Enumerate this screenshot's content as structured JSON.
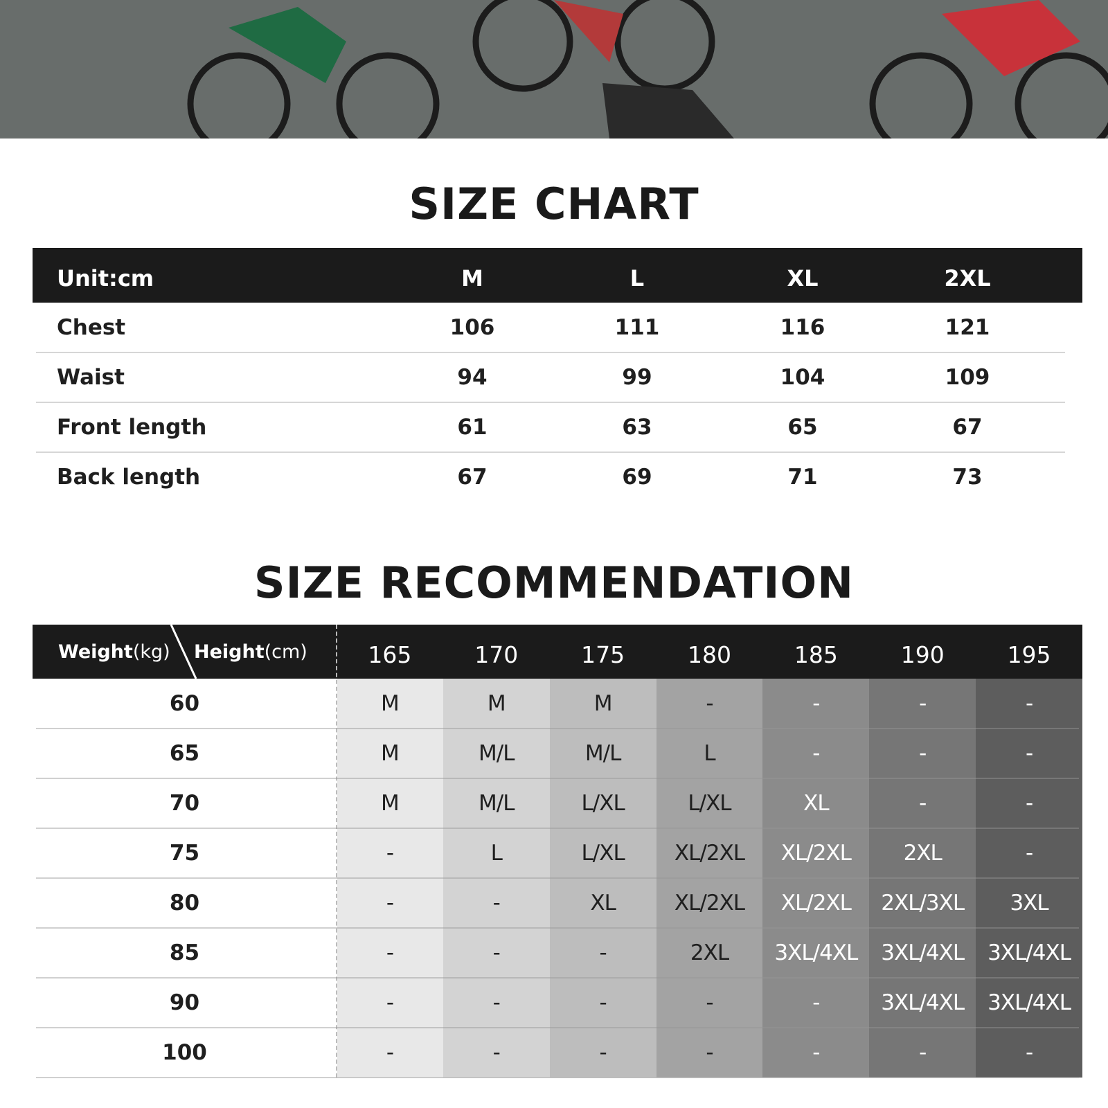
{
  "size_chart": {
    "title": "SIZE CHART",
    "header": [
      "Unit:cm",
      "M",
      "L",
      "XL",
      "2XL"
    ],
    "rows": [
      [
        "Chest",
        106,
        111,
        116,
        121
      ],
      [
        "Waist",
        94,
        99,
        104,
        109
      ],
      [
        "Front length",
        61,
        63,
        65,
        67
      ],
      [
        "Back length",
        67,
        69,
        71,
        73
      ]
    ]
  },
  "size_recommendation": {
    "title": "SIZE RECOMMENDATION",
    "weight_label": "Weight",
    "weight_unit": "(kg)",
    "height_label": "Height",
    "height_unit": "(cm)",
    "heights": [
      165,
      170,
      175,
      180,
      185,
      190,
      195
    ],
    "rows": [
      {
        "weight": 60,
        "sizes": [
          "M",
          "M",
          "M",
          "-",
          "-",
          "-",
          "-"
        ]
      },
      {
        "weight": 65,
        "sizes": [
          "M",
          "M/L",
          "M/L",
          "L",
          "-",
          "-",
          "-"
        ]
      },
      {
        "weight": 70,
        "sizes": [
          "M",
          "M/L",
          "L/XL",
          "L/XL",
          "XL",
          "-",
          "-"
        ]
      },
      {
        "weight": 75,
        "sizes": [
          "-",
          "L",
          "L/XL",
          "XL/2XL",
          "XL/2XL",
          "2XL",
          "-"
        ]
      },
      {
        "weight": 80,
        "sizes": [
          "-",
          "-",
          "XL",
          "XL/2XL",
          "XL/2XL",
          "2XL/3XL",
          "3XL"
        ]
      },
      {
        "weight": 85,
        "sizes": [
          "-",
          "-",
          "-",
          "2XL",
          "3XL/4XL",
          "3XL/4XL",
          "3XL/4XL"
        ]
      },
      {
        "weight": 90,
        "sizes": [
          "-",
          "-",
          "-",
          "-",
          "-",
          "3XL/4XL",
          "3XL/4XL"
        ]
      },
      {
        "weight": 100,
        "sizes": [
          "-",
          "-",
          "-",
          "-",
          "-",
          "-",
          "-"
        ]
      }
    ]
  }
}
